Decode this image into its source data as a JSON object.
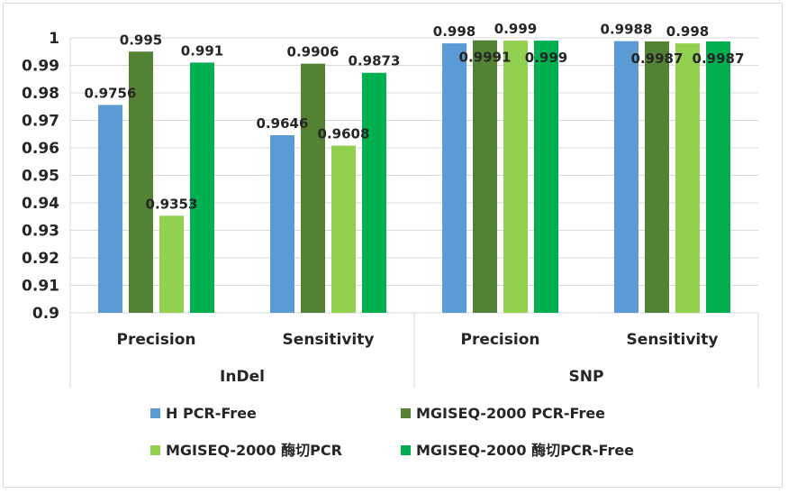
{
  "chart_data": {
    "type": "bar",
    "groups": [
      {
        "label": "InDel",
        "categories": [
          "Precision",
          "Sensitivity"
        ]
      },
      {
        "label": "SNP",
        "categories": [
          "Precision",
          "Sensitivity"
        ]
      }
    ],
    "categories": [
      "InDel Precision",
      "InDel Sensitivity",
      "SNP Precision",
      "SNP Sensitivity"
    ],
    "series": [
      {
        "name": "H PCR-Free",
        "color": "#5b9bd5",
        "values": [
          0.9756,
          0.9646,
          0.998,
          0.9988
        ],
        "labels": [
          "0.9756",
          "0.9646",
          "0.998",
          "0.9988"
        ]
      },
      {
        "name": "MGISEQ-2000 PCR-Free",
        "color": "#548235",
        "values": [
          0.995,
          0.9906,
          0.9991,
          0.9987
        ],
        "labels": [
          "0.995",
          "0.9906",
          "0.9991",
          "0.9987"
        ]
      },
      {
        "name": "MGISEQ-2000 酶切PCR",
        "color": "#92d050",
        "values": [
          0.9353,
          0.9608,
          0.999,
          0.998
        ],
        "labels": [
          "0.9353",
          "0.9608",
          "0.999",
          "0.998"
        ]
      },
      {
        "name": "MGISEQ-2000 酶切PCR-Free",
        "color": "#00b050",
        "values": [
          0.991,
          0.9873,
          0.999,
          0.9987
        ],
        "labels": [
          "0.991",
          "0.9873",
          "0.999",
          "0.9987"
        ]
      }
    ],
    "ylim": [
      0.9,
      1.0
    ],
    "ytick_step": 0.01,
    "yticks": [
      "0.9",
      "0.91",
      "0.92",
      "0.93",
      "0.94",
      "0.95",
      "0.96",
      "0.97",
      "0.98",
      "0.99",
      "1"
    ],
    "grid": true,
    "legend_position": "bottom",
    "title": "",
    "xlabel": "",
    "ylabel": ""
  }
}
